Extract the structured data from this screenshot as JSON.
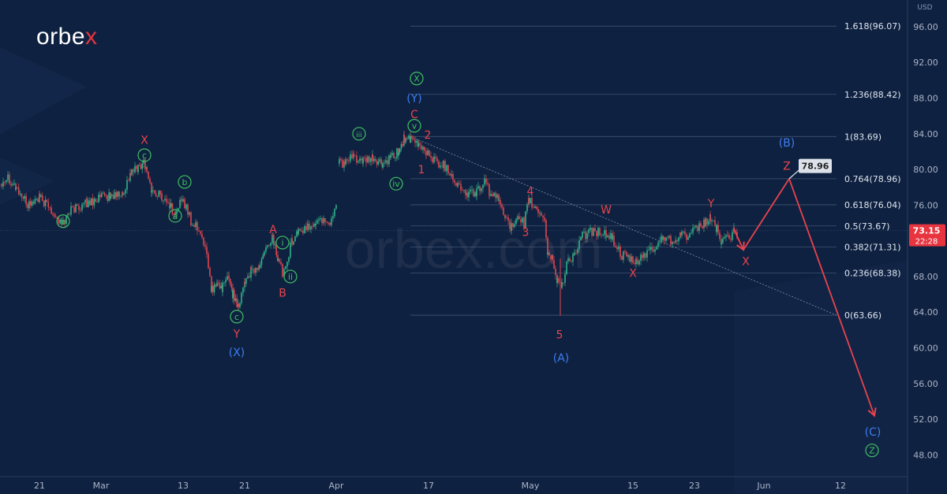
{
  "brand": {
    "logo_text": "orbe",
    "logo_x": "x"
  },
  "watermark": "orbex.com",
  "chart_data": {
    "type": "line",
    "currency": "USD",
    "y_axis_label": "USD",
    "ylim": [
      46,
      99
    ],
    "y_ticks": [
      48,
      52,
      56,
      60,
      64,
      68,
      72,
      76,
      80,
      84,
      88,
      92,
      96
    ],
    "y_tick_labels": [
      "48.00",
      "52.00",
      "56.00",
      "60.00",
      "64.00",
      "68.00",
      "72.00",
      "76.00",
      "80.00",
      "84.00",
      "88.00",
      "92.00",
      "96.00"
    ],
    "x_labels": [
      "21",
      "Mar",
      "13",
      "21",
      "Apr",
      "17",
      "May",
      "15",
      "23",
      "Jun",
      "12"
    ],
    "current_price": "73.15",
    "countdown": "22:28",
    "fib_levels": [
      {
        "label": "1.618(96.07)",
        "value": 96.07
      },
      {
        "label": "1.236(88.42)",
        "value": 88.42
      },
      {
        "label": "1(83.69)",
        "value": 83.69
      },
      {
        "label": "0.764(78.96)",
        "value": 78.96
      },
      {
        "label": "0.618(76.04)",
        "value": 76.04
      },
      {
        "label": "0.5(73.67)",
        "value": 73.67
      },
      {
        "label": "0.382(71.31)",
        "value": 71.31
      },
      {
        "label": "0.236(68.38)",
        "value": 68.38
      },
      {
        "label": "0(63.66)",
        "value": 63.66
      }
    ],
    "target_label": "78.96",
    "price_series": [
      [
        0,
        78.5
      ],
      [
        10,
        79.2
      ],
      [
        20,
        78.0
      ],
      [
        35,
        76.0
      ],
      [
        50,
        76.8
      ],
      [
        65,
        75.5
      ],
      [
        78,
        73.8
      ],
      [
        90,
        75.5
      ],
      [
        110,
        76.2
      ],
      [
        125,
        76.8
      ],
      [
        140,
        77.0
      ],
      [
        155,
        77.2
      ],
      [
        165,
        79.5
      ],
      [
        175,
        80.2
      ],
      [
        182,
        81.0
      ],
      [
        186,
        80.0
      ],
      [
        192,
        77.5
      ],
      [
        205,
        77.0
      ],
      [
        215,
        76.0
      ],
      [
        222,
        75.0
      ],
      [
        230,
        76.5
      ],
      [
        236,
        76.0
      ],
      [
        242,
        74.0
      ],
      [
        250,
        73.5
      ],
      [
        258,
        72.0
      ],
      [
        264,
        69.0
      ],
      [
        268,
        66.5
      ],
      [
        275,
        67.0
      ],
      [
        282,
        66.8
      ],
      [
        290,
        68.0
      ],
      [
        295,
        66.0
      ],
      [
        302,
        64.8
      ],
      [
        310,
        67.5
      ],
      [
        318,
        68.5
      ],
      [
        328,
        69.0
      ],
      [
        335,
        70.5
      ],
      [
        345,
        72.5
      ],
      [
        352,
        70.0
      ],
      [
        358,
        68.5
      ],
      [
        364,
        70.0
      ],
      [
        370,
        72.0
      ],
      [
        378,
        73.0
      ],
      [
        390,
        73.5
      ],
      [
        400,
        74.0
      ],
      [
        410,
        74.5
      ],
      [
        418,
        74.0
      ],
      [
        426,
        76.0
      ],
      [
        428,
        81.2
      ],
      [
        436,
        80.5
      ],
      [
        448,
        81.5
      ],
      [
        460,
        80.8
      ],
      [
        472,
        81.2
      ],
      [
        485,
        80.5
      ],
      [
        495,
        81.2
      ],
      [
        505,
        82.0
      ],
      [
        512,
        83.5
      ],
      [
        520,
        83.2
      ],
      [
        530,
        82.8
      ],
      [
        540,
        82.0
      ],
      [
        550,
        81.0
      ],
      [
        562,
        80.5
      ],
      [
        572,
        79.5
      ],
      [
        580,
        78.2
      ],
      [
        592,
        77.2
      ],
      [
        604,
        77.5
      ],
      [
        614,
        78.5
      ],
      [
        620,
        77.5
      ],
      [
        632,
        76.5
      ],
      [
        640,
        75.0
      ],
      [
        648,
        73.5
      ],
      [
        656,
        74.2
      ],
      [
        664,
        74.0
      ],
      [
        670,
        76.5
      ],
      [
        680,
        75.5
      ],
      [
        690,
        74.5
      ],
      [
        694,
        70.5
      ],
      [
        700,
        70.0
      ],
      [
        706,
        67.5
      ],
      [
        712,
        67.0
      ],
      [
        718,
        69.5
      ],
      [
        728,
        70.5
      ],
      [
        738,
        72.5
      ],
      [
        748,
        73.0
      ],
      [
        760,
        73.0
      ],
      [
        768,
        72.8
      ],
      [
        776,
        72.2
      ],
      [
        786,
        70.5
      ],
      [
        796,
        70.0
      ],
      [
        806,
        69.5
      ],
      [
        816,
        70.5
      ],
      [
        828,
        71.0
      ],
      [
        840,
        72.5
      ],
      [
        852,
        72.0
      ],
      [
        862,
        72.8
      ],
      [
        872,
        72.5
      ],
      [
        882,
        73.2
      ],
      [
        892,
        74.0
      ],
      [
        900,
        74.5
      ],
      [
        908,
        73.5
      ],
      [
        914,
        71.8
      ],
      [
        922,
        72.2
      ],
      [
        930,
        73.0
      ],
      [
        934,
        72.5
      ]
    ],
    "projection": [
      {
        "x": 930,
        "y": 73.3
      },
      {
        "x": 942,
        "y": 71.0
      },
      {
        "x": 1000,
        "y": 78.96
      },
      {
        "x": 1108,
        "y": 52.4
      }
    ],
    "trendline": [
      {
        "x": 520,
        "y": 83.7
      },
      {
        "x": 1060,
        "y": 63.66
      }
    ],
    "wave_labels": [
      {
        "text": "b",
        "style": "green-circle",
        "x": 80,
        "y": 74.2
      },
      {
        "text": "X",
        "style": "red",
        "x": 183,
        "y": 83.3
      },
      {
        "text": "c",
        "style": "green-circle",
        "x": 183,
        "y": 81.6
      },
      {
        "text": "b",
        "style": "green-circle",
        "x": 234,
        "y": 78.6
      },
      {
        "text": "a",
        "style": "green-circle",
        "x": 222,
        "y": 74.8
      },
      {
        "text": "Y",
        "style": "red",
        "x": 300,
        "y": 61.6
      },
      {
        "text": "c",
        "style": "green-circle",
        "x": 300,
        "y": 63.5
      },
      {
        "text": "(X)",
        "style": "blue",
        "x": 300,
        "y": 59.5
      },
      {
        "text": "A",
        "style": "red",
        "x": 346,
        "y": 73.3
      },
      {
        "text": "B",
        "style": "red",
        "x": 358,
        "y": 66.2
      },
      {
        "text": "i",
        "style": "green-circle",
        "x": 358,
        "y": 71.8
      },
      {
        "text": "ii",
        "style": "green-circle",
        "x": 368,
        "y": 68.0
      },
      {
        "text": "iii",
        "style": "green-circle",
        "x": 455,
        "y": 84.0
      },
      {
        "text": "iv",
        "style": "green-circle",
        "x": 502,
        "y": 78.4
      },
      {
        "text": "X",
        "style": "green-circle",
        "x": 528,
        "y": 90.2
      },
      {
        "text": "(Y)",
        "style": "blue",
        "x": 525,
        "y": 88.0
      },
      {
        "text": "C",
        "style": "red",
        "x": 525,
        "y": 86.2
      },
      {
        "text": "v",
        "style": "green-circle",
        "x": 525,
        "y": 84.9
      },
      {
        "text": "2",
        "style": "red",
        "x": 542,
        "y": 83.9
      },
      {
        "text": "1",
        "style": "red",
        "x": 534,
        "y": 80.0
      },
      {
        "text": "4",
        "style": "red",
        "x": 672,
        "y": 77.6
      },
      {
        "text": "3",
        "style": "red",
        "x": 666,
        "y": 73.0
      },
      {
        "text": "5",
        "style": "red",
        "x": 709,
        "y": 61.5
      },
      {
        "text": "(A)",
        "style": "blue",
        "x": 711,
        "y": 58.9
      },
      {
        "text": "W",
        "style": "red",
        "x": 768,
        "y": 75.5
      },
      {
        "text": "X",
        "style": "red",
        "x": 802,
        "y": 68.4
      },
      {
        "text": "Y",
        "style": "red",
        "x": 901,
        "y": 76.2
      },
      {
        "text": "X",
        "style": "red",
        "x": 945,
        "y": 69.7
      },
      {
        "text": "(B)",
        "style": "blue",
        "x": 997,
        "y": 83.0
      },
      {
        "text": "Z",
        "style": "red",
        "x": 997,
        "y": 80.4
      },
      {
        "text": "(C)",
        "style": "blue",
        "x": 1106,
        "y": 50.6
      },
      {
        "text": "Z",
        "style": "green-circle",
        "x": 1105,
        "y": 48.5
      }
    ]
  }
}
